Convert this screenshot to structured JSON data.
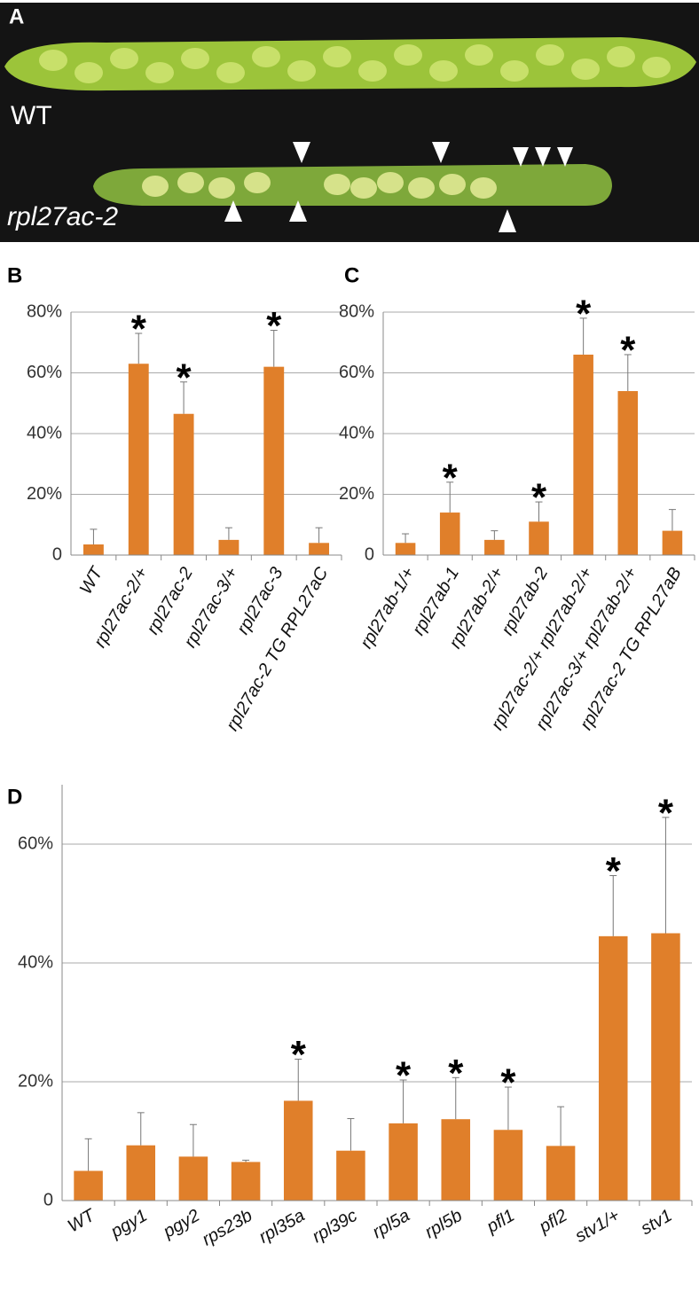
{
  "photo": {
    "panel_label": "A",
    "labels": [
      "WT",
      "rpl27ac-2"
    ]
  },
  "chart_data": [
    {
      "type": "bar",
      "panel_label": "B",
      "color": "#e07f2a",
      "grid": true,
      "categories": [
        "WT",
        "rpl27ac-2/+",
        "rpl27ac-2",
        "rpl27ac-3/+",
        "rpl27ac-3",
        "rpl27ac-2 TG RPL27aC"
      ],
      "values": [
        3.5,
        63,
        46.5,
        5,
        62,
        4
      ],
      "errors": [
        5,
        10,
        10.5,
        4,
        12,
        5
      ],
      "annotations": [
        null,
        "*",
        "*",
        null,
        "*",
        null
      ],
      "ylim": [
        0,
        80
      ],
      "yticks": [
        0,
        {
          "value": 20,
          "label": "20%"
        },
        {
          "value": 40,
          "label": "40%"
        },
        {
          "value": 60,
          "label": "60%"
        },
        {
          "value": 80,
          "label": "80%"
        }
      ]
    },
    {
      "type": "bar",
      "panel_label": "C",
      "color": "#e07f2a",
      "grid": true,
      "categories": [
        "rpl27ab-1/+",
        "rpl27ab-1",
        "rpl27ab-2/+",
        "rpl27ab-2",
        "rpl27ac-2/+ rpl27ab-2/+",
        "rpl27ac-3/+ rpl27ab-2/+",
        "rpl27ac-2 TG RPL27aB"
      ],
      "values": [
        4,
        14,
        5,
        11,
        66,
        54,
        8
      ],
      "errors": [
        3,
        10,
        3,
        6.5,
        12,
        12,
        7
      ],
      "annotations": [
        null,
        "*",
        null,
        "*",
        "*",
        "*",
        null
      ],
      "ylim": [
        0,
        80
      ],
      "yticks": [
        0,
        {
          "value": 20,
          "label": "20%"
        },
        {
          "value": 40,
          "label": "40%"
        },
        {
          "value": 60,
          "label": "60%"
        },
        {
          "value": 80,
          "label": "80%"
        }
      ]
    },
    {
      "type": "bar",
      "panel_label": "D",
      "color": "#e07f2a",
      "grid": true,
      "categories": [
        "WT",
        "pgy1",
        "pgy2",
        "rps23b",
        "rpl35a",
        "rpl39c",
        "rpl5a",
        "rpl5b",
        "pfl1",
        "pfl2",
        "stv1/+",
        "stv1"
      ],
      "values": [
        5,
        9.3,
        7.4,
        6.5,
        16.8,
        8.4,
        13,
        13.7,
        11.9,
        9.2,
        44.5,
        45
      ],
      "errors": [
        5.4,
        5.5,
        5.4,
        0.3,
        7,
        5.4,
        7.3,
        7,
        7.2,
        6.6,
        10.2,
        19.5
      ],
      "annotations": [
        null,
        null,
        null,
        null,
        "*",
        null,
        "*",
        "*",
        "*",
        null,
        "*",
        "*"
      ],
      "ylim": [
        0,
        70
      ],
      "yticks": [
        0,
        {
          "value": 20,
          "label": "20%"
        },
        {
          "value": 40,
          "label": "40%"
        },
        {
          "value": 60,
          "label": "60%"
        }
      ]
    }
  ]
}
